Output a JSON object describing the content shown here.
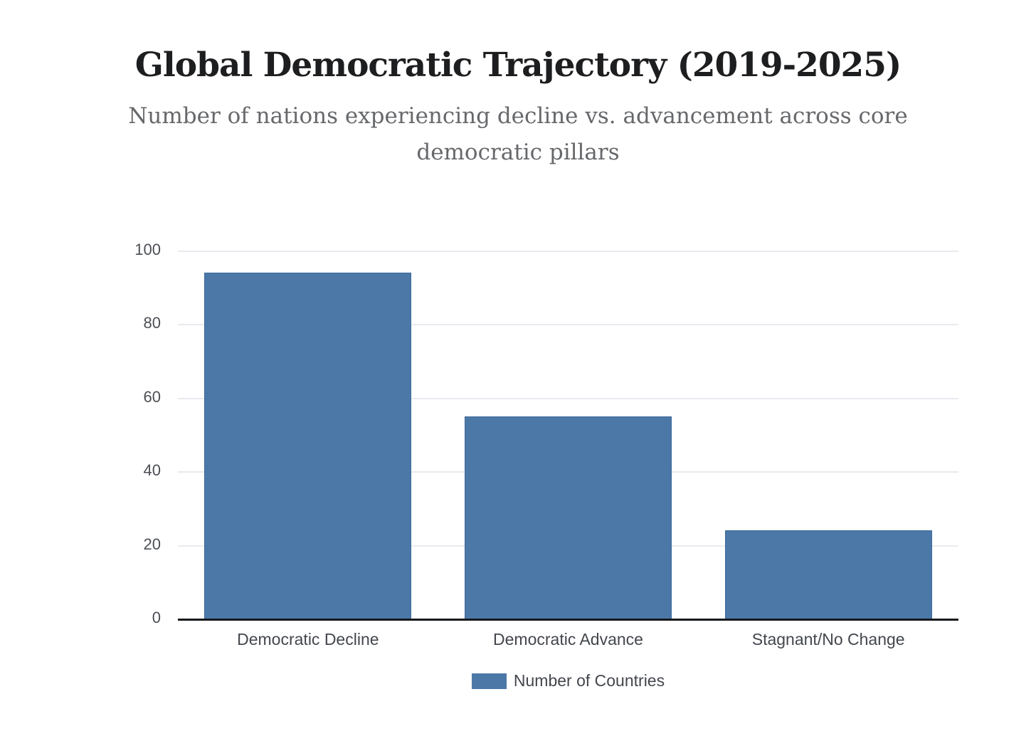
{
  "header": {
    "title": "Global Democratic Trajectory (2019-2025)",
    "subtitle": "Number of nations experiencing decline vs. advancement across core democratic pillars"
  },
  "chart_data": {
    "type": "bar",
    "title": "Global Democratic Trajectory (2019-2025)",
    "subtitle": "Number of nations experiencing decline vs. advancement across core democratic pillars",
    "categories": [
      "Democratic Decline",
      "Democratic Advance",
      "Stagnant/No Change"
    ],
    "values": [
      94,
      55,
      24
    ],
    "series_name": "Number of Countries",
    "xlabel": "",
    "ylabel": "",
    "ylim": [
      0,
      100
    ],
    "yticks": [
      0,
      20,
      40,
      60,
      80,
      100
    ],
    "grid": "horizontal",
    "legend_position": "bottom",
    "bar_color": "#4c78a8"
  },
  "legend": {
    "label": "Number of Countries"
  }
}
